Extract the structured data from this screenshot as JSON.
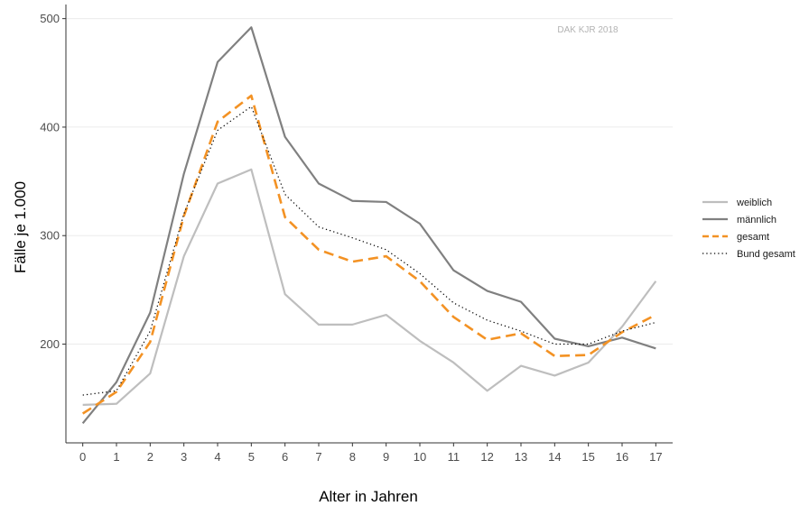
{
  "chart_data": {
    "type": "line",
    "watermark": "DAK KJR 2018",
    "xlabel": "Alter in Jahren",
    "ylabel": "Fälle je 1.000",
    "x": [
      0,
      1,
      2,
      3,
      4,
      5,
      6,
      7,
      8,
      9,
      10,
      11,
      12,
      13,
      14,
      15,
      16,
      17
    ],
    "x_tick_labels": [
      "0",
      "1",
      "2",
      "3",
      "4",
      "5",
      "6",
      "7",
      "8",
      "9",
      "10",
      "11",
      "12",
      "13",
      "14",
      "15",
      "16",
      "17"
    ],
    "y_ticks": [
      200,
      300,
      400,
      500
    ],
    "y_tick_labels": [
      "200",
      "300",
      "400",
      "500"
    ],
    "xlim": [
      -0.5,
      17.5
    ],
    "ylim": [
      109,
      513
    ],
    "grid": "horizontal",
    "legend_position": "right",
    "series": [
      {
        "name": "weiblich",
        "color": "#bebebe",
        "style": "solid",
        "values": [
          144,
          145,
          173,
          281,
          348,
          361,
          246,
          218,
          218,
          227,
          203,
          183,
          157,
          180,
          171,
          183,
          216,
          258
        ]
      },
      {
        "name": "männlich",
        "color": "#808080",
        "style": "solid",
        "values": [
          127,
          165,
          229,
          357,
          460,
          492,
          391,
          348,
          332,
          331,
          311,
          268,
          249,
          239,
          205,
          198,
          206,
          196
        ]
      },
      {
        "name": "gesamt",
        "color": "#f39224",
        "style": "dashed",
        "values": [
          136,
          156,
          202,
          318,
          405,
          429,
          317,
          287,
          276,
          281,
          258,
          225,
          204,
          210,
          189,
          190,
          211,
          227
        ]
      },
      {
        "name": "Bund gesamt",
        "color": "#000000",
        "style": "dotted",
        "values": [
          153,
          157,
          212,
          320,
          397,
          419,
          338,
          308,
          298,
          287,
          265,
          238,
          222,
          212,
          200,
          200,
          212,
          220
        ]
      }
    ]
  }
}
